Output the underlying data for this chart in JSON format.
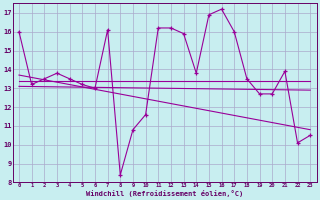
{
  "xlabel": "Windchill (Refroidissement éolien,°C)",
  "background_color": "#c8eef0",
  "grid_color": "#aaaacc",
  "line_color": "#990099",
  "spine_color": "#660066",
  "tick_color": "#660066",
  "xlim": [
    -0.5,
    23.5
  ],
  "ylim": [
    8,
    17.5
  ],
  "yticks": [
    8,
    9,
    10,
    11,
    12,
    13,
    14,
    15,
    16,
    17
  ],
  "xticks": [
    0,
    1,
    2,
    3,
    4,
    5,
    6,
    7,
    8,
    9,
    10,
    11,
    12,
    13,
    14,
    15,
    16,
    17,
    18,
    19,
    20,
    21,
    22,
    23
  ],
  "main_series": {
    "x": [
      0,
      1,
      2,
      3,
      4,
      5,
      6,
      7,
      8,
      9,
      10,
      11,
      12,
      13,
      14,
      15,
      16,
      17,
      18,
      19,
      20,
      21,
      22,
      23
    ],
    "y": [
      16.0,
      13.2,
      13.5,
      13.8,
      13.5,
      13.2,
      13.0,
      16.1,
      8.4,
      10.8,
      11.6,
      16.2,
      16.2,
      15.9,
      13.8,
      16.9,
      17.2,
      16.0,
      13.5,
      12.7,
      12.7,
      13.9,
      10.1,
      10.5
    ]
  },
  "trend_lines": [
    {
      "x": [
        0,
        23
      ],
      "y": [
        13.4,
        13.4
      ]
    },
    {
      "x": [
        0,
        23
      ],
      "y": [
        13.1,
        12.9
      ]
    },
    {
      "x": [
        0,
        23
      ],
      "y": [
        13.7,
        10.8
      ]
    }
  ]
}
